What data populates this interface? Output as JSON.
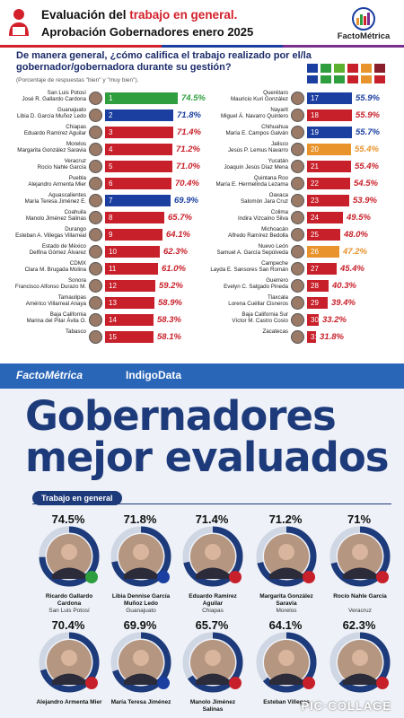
{
  "header": {
    "title_part1": "Evaluación del ",
    "title_highlight": "trabajo en general.",
    "subtitle": "Aprobación Gobernadores enero 2025",
    "brand": "FactoMétrica"
  },
  "question": "De manera general, ¿cómo califica el trabajo realizado por el/la gobernador/gobernadora durante su gestión?",
  "note": "(Porcentaje de respuestas \"bien\" y \"muy bien\").",
  "chart_data": {
    "type": "bar",
    "title": "Aprobación Gobernadores enero 2025",
    "xlim": [
      0,
      100
    ],
    "series_colors": {
      "green": "#2e9e3e",
      "blue": "#1b3fa0",
      "red": "#c8202a",
      "orange": "#e8932c"
    },
    "rows": [
      {
        "rank": 1,
        "state": "San Luis Potosí",
        "governor": "José R. Gallardo Cardona",
        "value": 74.5,
        "color": "green"
      },
      {
        "rank": 2,
        "state": "Guanajuato",
        "governor": "Libia D. García Muñoz Ledo",
        "value": 71.8,
        "color": "blue"
      },
      {
        "rank": 3,
        "state": "Chiapas",
        "governor": "Eduardo Ramírez Aguilar",
        "value": 71.4,
        "color": "red"
      },
      {
        "rank": 4,
        "state": "Morelos",
        "governor": "Margarita González Saravia",
        "value": 71.2,
        "color": "red"
      },
      {
        "rank": 5,
        "state": "Veracruz",
        "governor": "Rocío Nahle García",
        "value": 71.0,
        "color": "red"
      },
      {
        "rank": 6,
        "state": "Puebla",
        "governor": "Alejandro Armenta Mier",
        "value": 70.4,
        "color": "red"
      },
      {
        "rank": 7,
        "state": "Aguascalientes",
        "governor": "María Teresa Jiménez E.",
        "value": 69.9,
        "color": "blue"
      },
      {
        "rank": 8,
        "state": "Coahuila",
        "governor": "Manolo Jiménez Salinas",
        "value": 65.7,
        "color": "red"
      },
      {
        "rank": 9,
        "state": "Durango",
        "governor": "Esteban A. Villegas Villarreal",
        "value": 64.1,
        "color": "red"
      },
      {
        "rank": 10,
        "state": "Estado de México",
        "governor": "Delfina Gómez Álvarez",
        "value": 62.3,
        "color": "red"
      },
      {
        "rank": 11,
        "state": "CDMX",
        "governor": "Clara M. Brugada Molina",
        "value": 61.0,
        "color": "red"
      },
      {
        "rank": 12,
        "state": "Sonora",
        "governor": "Francisco Alfonso Durazo M.",
        "value": 59.2,
        "color": "red"
      },
      {
        "rank": 13,
        "state": "Tamaulipas",
        "governor": "Américo Villarreal Anaya",
        "value": 58.9,
        "color": "red"
      },
      {
        "rank": 14,
        "state": "Baja California",
        "governor": "Marina del Pilar Ávila O.",
        "value": 58.3,
        "color": "red"
      },
      {
        "rank": 15,
        "state": "Tabasco",
        "governor": "",
        "value": 58.1,
        "color": "red"
      },
      {
        "rank": 17,
        "state": "Querétaro",
        "governor": "Mauricio Kuri González",
        "value": 55.9,
        "color": "blue"
      },
      {
        "rank": 18,
        "state": "Nayarit",
        "governor": "Miguel Á. Navarro Quintero",
        "value": 55.9,
        "color": "red"
      },
      {
        "rank": 19,
        "state": "Chihuahua",
        "governor": "María E. Campos Galván",
        "value": 55.7,
        "color": "blue"
      },
      {
        "rank": 20,
        "state": "Jalisco",
        "governor": "Jesús P. Lemus Navarro",
        "value": 55.4,
        "color": "orange"
      },
      {
        "rank": 21,
        "state": "Yucatán",
        "governor": "Joaquín Jesús Díaz Mena",
        "value": 55.4,
        "color": "red"
      },
      {
        "rank": 22,
        "state": "Quintana Roo",
        "governor": "María E. Hermelinda Lezama",
        "value": 54.5,
        "color": "red"
      },
      {
        "rank": 23,
        "state": "Oaxaca",
        "governor": "Salomón Jara Cruz",
        "value": 53.9,
        "color": "red"
      },
      {
        "rank": 24,
        "state": "Colima",
        "governor": "Indira Vizcaíno Silva",
        "value": 49.5,
        "color": "red"
      },
      {
        "rank": 25,
        "state": "Michoacán",
        "governor": "Alfredo Ramírez Bedolla",
        "value": 48.0,
        "color": "red"
      },
      {
        "rank": 26,
        "state": "Nuevo León",
        "governor": "Samuel A. García Sepúlveda",
        "value": 47.2,
        "color": "orange"
      },
      {
        "rank": 27,
        "state": "Campeche",
        "governor": "Layda E. Sansores San Román",
        "value": 45.4,
        "color": "red"
      },
      {
        "rank": 28,
        "state": "Guerrero",
        "governor": "Evelyn C. Salgado Pineda",
        "value": 40.3,
        "color": "red"
      },
      {
        "rank": 29,
        "state": "Tlaxcala",
        "governor": "Lorena Cuéllar Cisneros",
        "value": 39.4,
        "color": "red"
      },
      {
        "rank": 30,
        "state": "Baja California Sur",
        "governor": "Víctor M. Castro Cosío",
        "value": 33.2,
        "color": "red"
      },
      {
        "rank": 31,
        "state": "Zacatecas",
        "governor": "",
        "value": 31.8,
        "color": "red"
      }
    ]
  },
  "bottom": {
    "brand1": "FactoMétrica",
    "brand2": "IndigoData",
    "title_line1": "Gobernadores",
    "title_line2": "mejor evaluados",
    "section": "Trabajo en general",
    "watermark": "PIC·COLLAGE",
    "cards": [
      {
        "pct": "74.5%",
        "value": 74.5,
        "name": "Ricardo Gallardo Cardona",
        "state": "San Luis Potosí",
        "badge": "#2e9e3e"
      },
      {
        "pct": "71.8%",
        "value": 71.8,
        "name": "Libia Dennise García Muñoz Ledo",
        "state": "Guanajuato",
        "badge": "#1b3fa0"
      },
      {
        "pct": "71.4%",
        "value": 71.4,
        "name": "Eduardo Ramírez Aguilar",
        "state": "Chiapas",
        "badge": "#c8202a"
      },
      {
        "pct": "71.2%",
        "value": 71.2,
        "name": "Margarita González Saravia",
        "state": "Morelos",
        "badge": "#c8202a"
      },
      {
        "pct": "71%",
        "value": 71.0,
        "name": "Rocío Nahle García",
        "state": "Veracruz",
        "badge": "#c8202a"
      },
      {
        "pct": "70.4%",
        "value": 70.4,
        "name": "Alejandro Armenta Mier",
        "state": "",
        "badge": "#c8202a"
      },
      {
        "pct": "69.9%",
        "value": 69.9,
        "name": "María Teresa Jiménez",
        "state": "",
        "badge": "#1b3fa0"
      },
      {
        "pct": "65.7%",
        "value": 65.7,
        "name": "Manolo Jiménez Salinas",
        "state": "",
        "badge": "#c8202a"
      },
      {
        "pct": "64.1%",
        "value": 64.1,
        "name": "Esteban Villegas",
        "state": "",
        "badge": "#c8202a"
      },
      {
        "pct": "62.3%",
        "value": 62.3,
        "name": "",
        "state": "",
        "badge": "#c8202a"
      }
    ]
  }
}
